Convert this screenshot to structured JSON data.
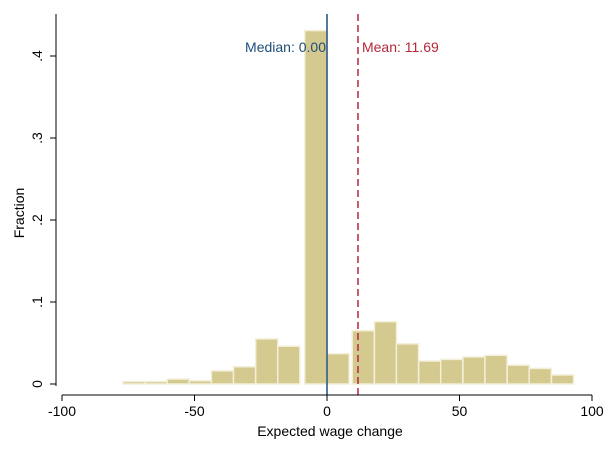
{
  "chart_data": {
    "type": "bar",
    "title": "",
    "xlabel": "Expected wage change",
    "ylabel": "Fraction",
    "xlim": [
      -100,
      100
    ],
    "ylim": [
      0,
      0.44
    ],
    "grid": false,
    "legend": "none",
    "x_ticks": [
      -100,
      -50,
      0,
      50,
      100
    ],
    "x_tick_labels": [
      "-100",
      "-50",
      "0",
      "50",
      "100"
    ],
    "y_ticks": [
      0,
      0.1,
      0.2,
      0.3,
      0.4
    ],
    "y_tick_labels": [
      "0",
      ".1",
      ".2",
      ".3",
      ".4"
    ],
    "bin_width": 8.35,
    "bins": [
      {
        "start": -77.0,
        "value": 0.003
      },
      {
        "start": -68.6,
        "value": 0.003
      },
      {
        "start": -60.3,
        "value": 0.006
      },
      {
        "start": -52.0,
        "value": 0.004
      },
      {
        "start": -43.6,
        "value": 0.016
      },
      {
        "start": -35.3,
        "value": 0.021
      },
      {
        "start": -26.9,
        "value": 0.055
      },
      {
        "start": -18.6,
        "value": 0.046
      },
      {
        "start": -8.4,
        "value": 0.431
      },
      {
        "start": 0.0,
        "value": 0.037
      },
      {
        "start": 9.5,
        "value": 0.065
      },
      {
        "start": 17.9,
        "value": 0.076
      },
      {
        "start": 26.2,
        "value": 0.049
      },
      {
        "start": 34.6,
        "value": 0.028
      },
      {
        "start": 42.9,
        "value": 0.03
      },
      {
        "start": 51.3,
        "value": 0.033
      },
      {
        "start": 59.6,
        "value": 0.035
      },
      {
        "start": 68.0,
        "value": 0.023
      },
      {
        "start": 76.3,
        "value": 0.019
      },
      {
        "start": 84.7,
        "value": 0.011
      }
    ],
    "reference_lines": [
      {
        "name": "median",
        "x": 0.0,
        "label": "Median:  0.00",
        "color": "#1f4e79",
        "style": "solid"
      },
      {
        "name": "mean",
        "x": 11.69,
        "label": "Mean: 11.69",
        "color": "#b5273b",
        "style": "dashed"
      }
    ],
    "colors": {
      "bar_fill": "#d4c98e",
      "bar_stroke": "#f3efd9",
      "axis": "#000000"
    }
  }
}
